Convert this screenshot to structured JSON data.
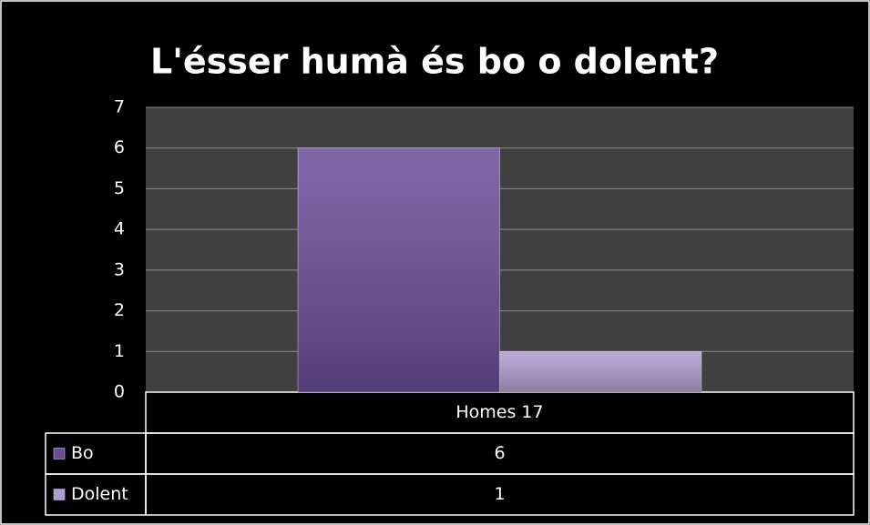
{
  "chart_data": {
    "type": "bar",
    "title": "L'ésser humà és bo o dolent?",
    "categories": [
      "Homes 17"
    ],
    "series": [
      {
        "name": "Bo",
        "color": "#6a4c96",
        "values": [
          6
        ]
      },
      {
        "name": "Dolent",
        "color": "#b09cce",
        "values": [
          1
        ]
      }
    ],
    "ylim": [
      0,
      7
    ],
    "yticks": [
      0,
      1,
      2,
      3,
      4,
      5,
      6,
      7
    ],
    "grid": true
  }
}
